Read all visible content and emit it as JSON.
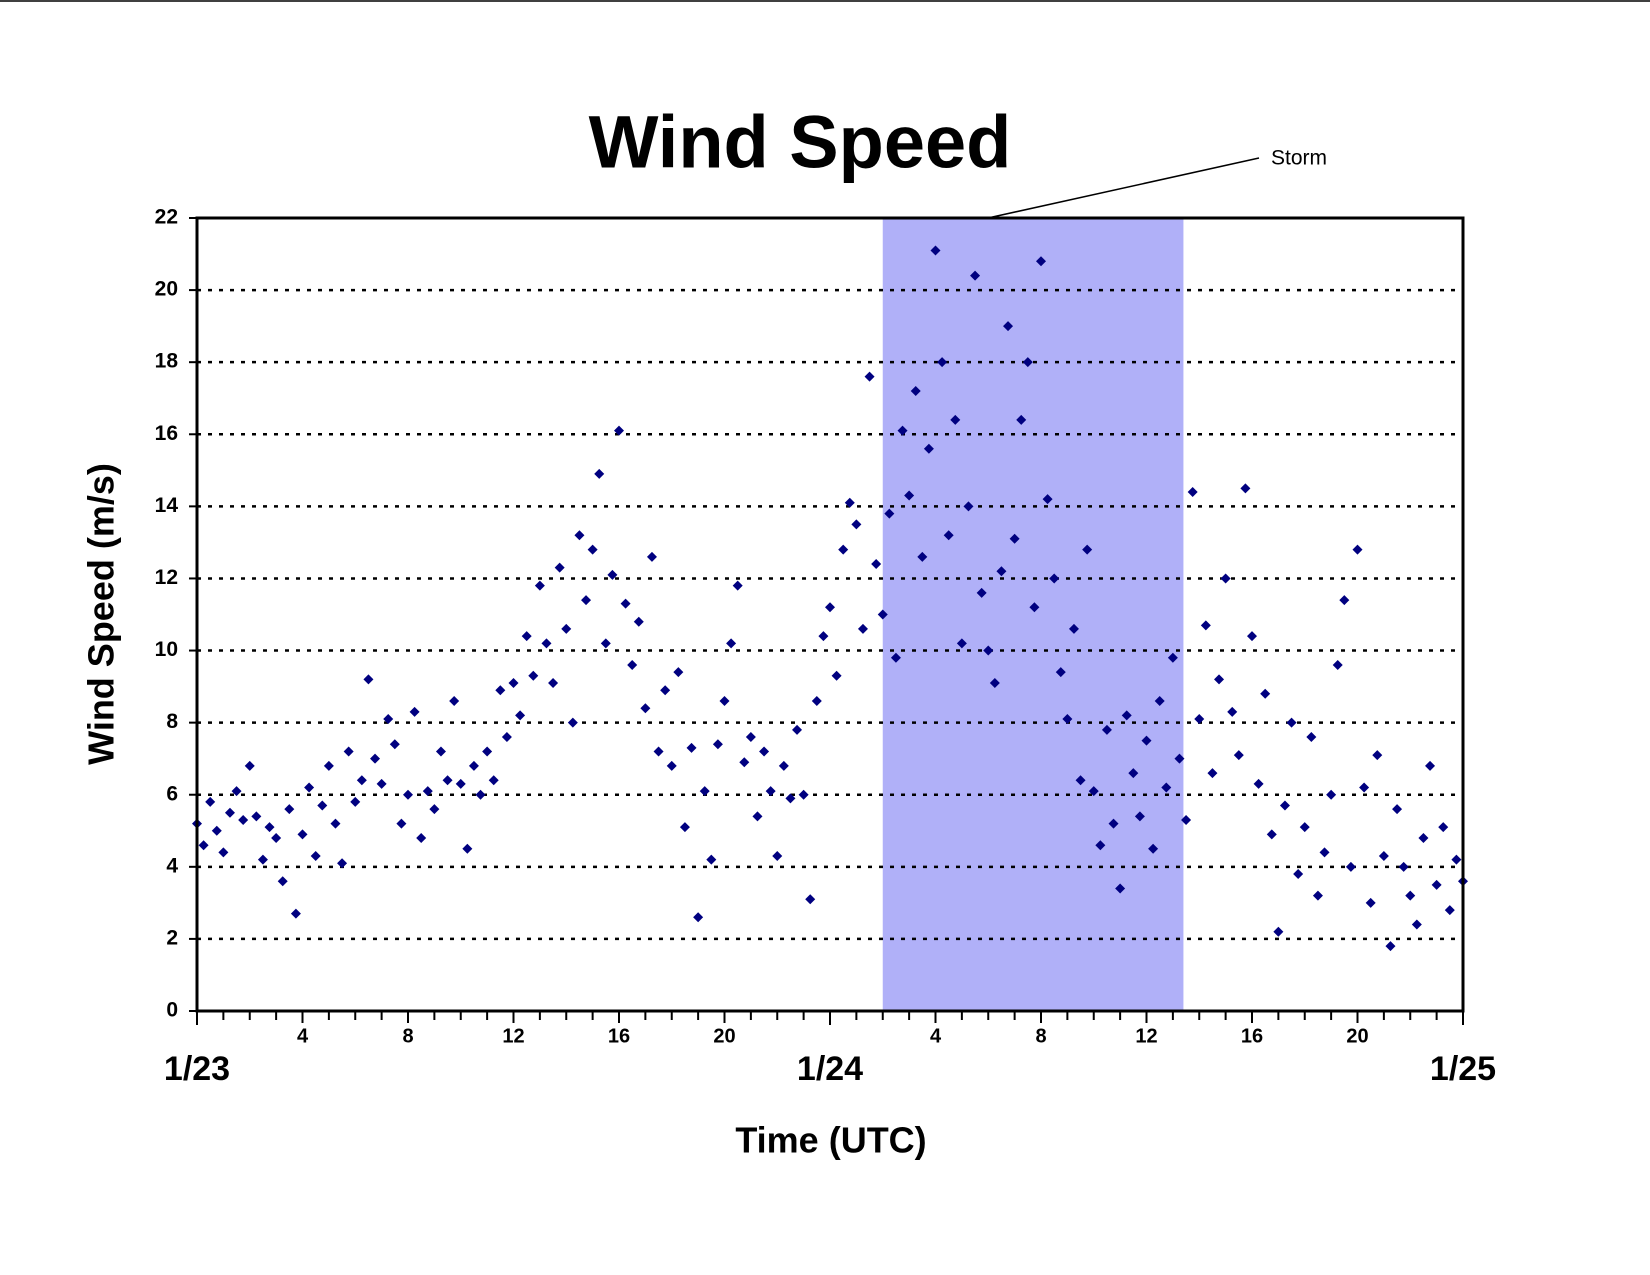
{
  "chart_data": {
    "type": "scatter",
    "title": "Wind Speed",
    "x_label": "Time (UTC)",
    "y_label": "Wind Speed (m/s)",
    "color": "#000080",
    "grid": true,
    "xlim": [
      0,
      48
    ],
    "ylim": [
      0,
      22
    ],
    "yticks": [
      0,
      2,
      4,
      6,
      8,
      10,
      12,
      14,
      16,
      18,
      20,
      22
    ],
    "xticks": [
      4,
      8,
      12,
      16,
      20,
      {
        "value": 28,
        "label": "4"
      },
      {
        "value": 32,
        "label": "8"
      },
      {
        "value": 36,
        "label": "12"
      },
      {
        "value": 40,
        "label": "16"
      },
      {
        "value": 44,
        "label": "20"
      }
    ],
    "date_ticks": [
      {
        "value": 0,
        "label": "1/23"
      },
      {
        "value": 24,
        "label": "1/24"
      },
      {
        "value": 48,
        "label": "1/25"
      }
    ],
    "xticks_minor": [
      0,
      1,
      2,
      3,
      4,
      5,
      6,
      7,
      8,
      9,
      10,
      11,
      12,
      13,
      14,
      15,
      16,
      17,
      18,
      19,
      20,
      21,
      22,
      23,
      24,
      25,
      26,
      27,
      28,
      29,
      30,
      31,
      32,
      33,
      34,
      35,
      36,
      37,
      38,
      39,
      40,
      41,
      42,
      43,
      44,
      45,
      46,
      47,
      48
    ],
    "storm": {
      "label": "Storm",
      "x": [
        26,
        37.4
      ],
      "color": "#b0b0f8"
    },
    "x": [
      0,
      0.25,
      0.5,
      0.75,
      1,
      1.25,
      1.5,
      1.75,
      2,
      2.25,
      2.5,
      2.75,
      3,
      3.25,
      3.5,
      3.75,
      4,
      4.25,
      4.5,
      4.75,
      5,
      5.25,
      5.5,
      5.75,
      6,
      6.25,
      6.5,
      6.75,
      7,
      7.25,
      7.5,
      7.75,
      8,
      8.25,
      8.5,
      8.75,
      9,
      9.25,
      9.5,
      9.75,
      10,
      10.25,
      10.5,
      10.75,
      11,
      11.25,
      11.5,
      11.75,
      12,
      12.25,
      12.5,
      12.75,
      13,
      13.25,
      13.5,
      13.75,
      14,
      14.25,
      14.5,
      14.75,
      15,
      15.25,
      15.5,
      15.75,
      16,
      16.25,
      16.5,
      16.75,
      17,
      17.25,
      17.5,
      17.75,
      18,
      18.25,
      18.5,
      18.75,
      19,
      19.25,
      19.5,
      19.75,
      20,
      20.25,
      20.5,
      20.75,
      21,
      21.25,
      21.5,
      21.75,
      22,
      22.25,
      22.5,
      22.75,
      23,
      23.25,
      23.5,
      23.75,
      24,
      24.25,
      24.5,
      24.75,
      25,
      25.25,
      25.5,
      25.75,
      26,
      26.25,
      26.5,
      26.75,
      27,
      27.25,
      27.5,
      27.75,
      28,
      28.25,
      28.5,
      28.75,
      29,
      29.25,
      29.5,
      29.75,
      30,
      30.25,
      30.5,
      30.75,
      31,
      31.25,
      31.5,
      31.75,
      32,
      32.25,
      32.5,
      32.75,
      33,
      33.25,
      33.5,
      33.75,
      34,
      34.25,
      34.5,
      34.75,
      35,
      35.25,
      35.5,
      35.75,
      36,
      36.25,
      36.5,
      36.75,
      37,
      37.25,
      37.5,
      37.75,
      38,
      38.25,
      38.5,
      38.75,
      39,
      39.25,
      39.5,
      39.75,
      40,
      40.25,
      40.5,
      40.75,
      41,
      41.25,
      41.5,
      41.75,
      42,
      42.25,
      42.5,
      42.75,
      43,
      43.25,
      43.5,
      43.75,
      44,
      44.25,
      44.5,
      44.75,
      45,
      45.25,
      45.5,
      45.75,
      46,
      46.25,
      46.5,
      46.75,
      47,
      47.25,
      47.5,
      47.75,
      48
    ],
    "values": [
      5.2,
      4.6,
      5.8,
      5.0,
      4.4,
      5.5,
      6.1,
      5.3,
      6.8,
      5.4,
      4.2,
      5.1,
      4.8,
      3.6,
      5.6,
      2.7,
      4.9,
      6.2,
      4.3,
      5.7,
      6.8,
      5.2,
      4.1,
      7.2,
      5.8,
      6.4,
      9.2,
      7.0,
      6.3,
      8.1,
      7.4,
      5.2,
      6.0,
      8.3,
      4.8,
      6.1,
      5.6,
      7.2,
      6.4,
      8.6,
      6.3,
      4.5,
      6.8,
      6.0,
      7.2,
      6.4,
      8.9,
      7.6,
      9.1,
      8.2,
      10.4,
      9.3,
      11.8,
      10.2,
      9.1,
      12.3,
      10.6,
      8.0,
      13.2,
      11.4,
      12.8,
      14.9,
      10.2,
      12.1,
      16.1,
      11.3,
      9.6,
      10.8,
      8.4,
      12.6,
      7.2,
      8.9,
      6.8,
      9.4,
      5.1,
      7.3,
      2.6,
      6.1,
      4.2,
      7.4,
      8.6,
      10.2,
      11.8,
      6.9,
      7.6,
      5.4,
      7.2,
      6.1,
      4.3,
      6.8,
      5.9,
      7.8,
      6.0,
      3.1,
      8.6,
      10.4,
      11.2,
      9.3,
      12.8,
      14.1,
      13.5,
      10.6,
      17.6,
      12.4,
      11.0,
      13.8,
      9.8,
      16.1,
      14.3,
      17.2,
      12.6,
      15.6,
      21.1,
      18.0,
      13.2,
      16.4,
      10.2,
      14.0,
      20.4,
      11.6,
      10.0,
      9.1,
      12.2,
      19.0,
      13.1,
      16.4,
      18.0,
      11.2,
      20.8,
      14.2,
      12.0,
      9.4,
      8.1,
      10.6,
      6.4,
      12.8,
      6.1,
      4.6,
      7.8,
      5.2,
      3.4,
      8.2,
      6.6,
      5.4,
      7.5,
      4.5,
      8.6,
      6.2,
      9.8,
      7.0,
      5.3,
      14.4,
      8.1,
      10.7,
      6.6,
      9.2,
      12.0,
      8.3,
      7.1,
      14.5,
      10.4,
      6.3,
      8.8,
      4.9,
      2.2,
      5.7,
      8.0,
      3.8,
      5.1,
      7.6,
      3.2,
      4.4,
      6.0,
      9.6,
      11.4,
      4.0,
      12.8,
      6.2,
      3.0,
      7.1,
      4.3,
      1.8,
      5.6,
      4.0,
      3.2,
      2.4,
      4.8,
      6.8,
      3.5,
      5.1,
      2.8,
      4.2,
      3.6
    ]
  }
}
